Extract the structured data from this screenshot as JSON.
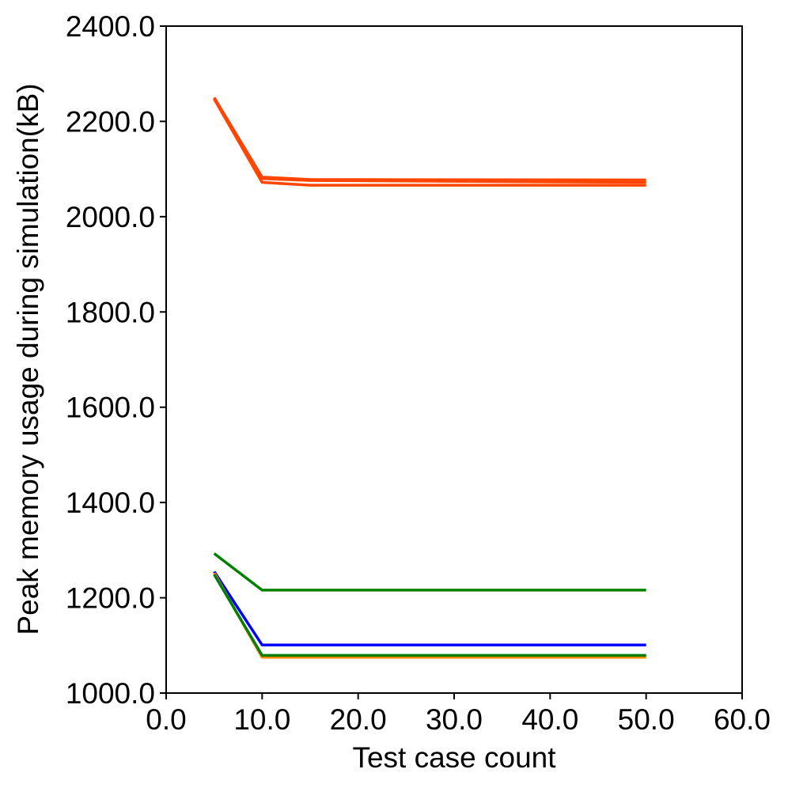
{
  "chart_data": {
    "type": "line",
    "title": "",
    "xlabel": "Test case count",
    "ylabel": "Peak memory usage during simulation(kB)",
    "xlim": [
      0,
      60
    ],
    "ylim": [
      1000,
      2400
    ],
    "xticks": [
      "0.0",
      "10.0",
      "20.0",
      "30.0",
      "40.0",
      "50.0",
      "60.0"
    ],
    "yticks": [
      "1000.0",
      "1200.0",
      "1400.0",
      "1600.0",
      "1800.0",
      "2000.0",
      "2200.0",
      "2400.0"
    ],
    "grid": false,
    "legend": "none",
    "series": [
      {
        "color": "#ff4500",
        "x": [
          5,
          10,
          15,
          50
        ],
        "y": [
          2250,
          2083,
          2078,
          2077
        ]
      },
      {
        "color": "#ff4500",
        "x": [
          5,
          10,
          15,
          50
        ],
        "y": [
          2248,
          2080,
          2076,
          2072
        ]
      },
      {
        "color": "#ff4500",
        "x": [
          5,
          10,
          15,
          50
        ],
        "y": [
          2247,
          2072,
          2066,
          2066
        ]
      },
      {
        "color": "#008000",
        "x": [
          5,
          10,
          50
        ],
        "y": [
          1293,
          1216,
          1216
        ]
      },
      {
        "color": "#0000ff",
        "x": [
          5,
          10,
          50
        ],
        "y": [
          1255,
          1101,
          1101
        ]
      },
      {
        "color": "#ff8c00",
        "x": [
          5,
          10,
          50
        ],
        "y": [
          1252,
          1075,
          1075
        ]
      },
      {
        "color": "#008000",
        "x": [
          5,
          10,
          50
        ],
        "y": [
          1249,
          1079,
          1079
        ]
      }
    ]
  }
}
